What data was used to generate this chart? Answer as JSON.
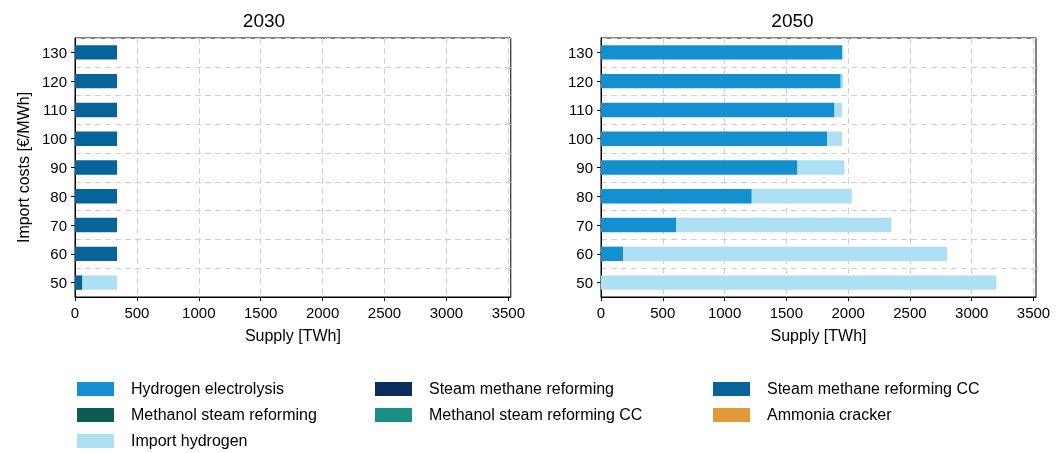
{
  "chart_data": [
    {
      "type": "bar",
      "title": "2030",
      "xlabel": "Supply [TWh]",
      "ylabel": "Import costs [€/MWh]",
      "orientation": "horizontal",
      "stacked": true,
      "grid": true,
      "legend": "bottom",
      "categories": [
        "130",
        "120",
        "110",
        "100",
        "90",
        "80",
        "70",
        "60",
        "50"
      ],
      "xlim": [
        0,
        3520
      ],
      "xticks": [
        0,
        500,
        1000,
        1500,
        2000,
        2500,
        3000,
        3500
      ],
      "series": [
        {
          "name": "Hydrogen electrolysis",
          "color": "#1490d0",
          "values": [
            0,
            0,
            0,
            0,
            0,
            0,
            0,
            0,
            0
          ]
        },
        {
          "name": "Steam methane reforming",
          "color": "#0a2d5e",
          "values": [
            0,
            0,
            0,
            0,
            0,
            0,
            0,
            0,
            0
          ]
        },
        {
          "name": "Steam methane reforming CC",
          "color": "#07649a",
          "values": [
            340,
            340,
            340,
            340,
            340,
            340,
            340,
            340,
            60
          ]
        },
        {
          "name": "Methanol steam reforming",
          "color": "#0c5c4f",
          "values": [
            0,
            0,
            0,
            0,
            0,
            0,
            0,
            0,
            0
          ]
        },
        {
          "name": "Methanol steam reforming CC",
          "color": "#1a9082",
          "values": [
            0,
            0,
            0,
            0,
            0,
            0,
            0,
            0,
            0
          ]
        },
        {
          "name": "Ammonia cracker",
          "color": "#e09a3a",
          "values": [
            0,
            0,
            0,
            0,
            0,
            0,
            0,
            0,
            0
          ]
        },
        {
          "name": "Import hydrogen",
          "color": "#aee0f4",
          "values": [
            0,
            0,
            0,
            0,
            0,
            0,
            0,
            0,
            280
          ]
        }
      ]
    },
    {
      "type": "bar",
      "title": "2050",
      "xlabel": "Supply [TWh]",
      "orientation": "horizontal",
      "stacked": true,
      "grid": true,
      "categories": [
        "130",
        "120",
        "110",
        "100",
        "90",
        "80",
        "70",
        "60",
        "50"
      ],
      "xlim": [
        0,
        3520
      ],
      "xticks": [
        0,
        500,
        1000,
        1500,
        2000,
        2500,
        3000,
        3500
      ],
      "series": [
        {
          "color": "#1490d0",
          "values": [
            1950,
            1940,
            1890,
            1830,
            1590,
            1220,
            610,
            180,
            0
          ]
        },
        {
          "color": "#0a2d5e",
          "values": [
            0,
            0,
            0,
            0,
            0,
            0,
            0,
            0,
            0
          ]
        },
        {
          "color": "#07649a",
          "values": [
            0,
            0,
            0,
            0,
            0,
            0,
            0,
            0,
            0
          ]
        },
        {
          "color": "#0c5c4f",
          "values": [
            0,
            0,
            0,
            0,
            0,
            0,
            0,
            0,
            0
          ]
        },
        {
          "color": "#1a9082",
          "values": [
            0,
            0,
            0,
            0,
            0,
            0,
            0,
            0,
            0
          ]
        },
        {
          "color": "#e09a3a",
          "values": [
            0,
            0,
            0,
            0,
            0,
            0,
            0,
            0,
            0
          ]
        },
        {
          "color": "#aee0f4",
          "values": [
            10,
            20,
            60,
            120,
            380,
            810,
            1740,
            2620,
            3200
          ]
        }
      ]
    }
  ]
}
